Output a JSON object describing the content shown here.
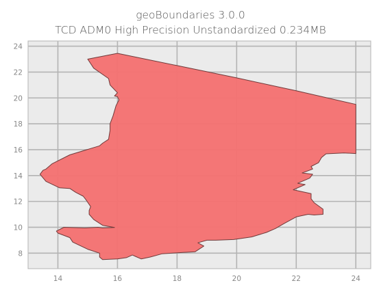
{
  "title_line1": "geoBoundaries 3.0.0",
  "title_line2": "TCD ADM0 High Precision Unstandardized 0.234MB",
  "colors": {
    "background": "#ebebeb",
    "grid": "#b3b3b3",
    "shape_fill": "#f47272",
    "shape_stroke": "#6f3a3a",
    "frame": "#bdbdbd",
    "tick_text": "#888888"
  },
  "chart_data": {
    "type": "map",
    "title": "geoBoundaries 3.0.0\nTCD ADM0 High Precision Unstandardized 0.234MB",
    "xlabel": "",
    "ylabel": "",
    "xlim": [
      13.0,
      24.5
    ],
    "ylim": [
      6.8,
      24.4
    ],
    "x_ticks": [
      14,
      16,
      18,
      20,
      22,
      24
    ],
    "y_ticks": [
      8,
      10,
      12,
      14,
      16,
      18,
      20,
      22,
      24
    ],
    "grid": true,
    "shape_lonlat": [
      [
        15.0,
        23.0
      ],
      [
        16.0,
        23.45
      ],
      [
        18.0,
        22.5
      ],
      [
        20.0,
        21.55
      ],
      [
        22.0,
        20.55
      ],
      [
        24.0,
        19.5
      ],
      [
        24.0,
        15.7
      ],
      [
        23.6,
        15.75
      ],
      [
        23.0,
        15.68
      ],
      [
        22.85,
        15.4
      ],
      [
        22.75,
        15.0
      ],
      [
        22.5,
        14.7
      ],
      [
        22.55,
        14.5
      ],
      [
        22.2,
        14.2
      ],
      [
        22.55,
        14.1
      ],
      [
        22.45,
        13.8
      ],
      [
        22.25,
        13.6
      ],
      [
        22.05,
        13.4
      ],
      [
        22.3,
        13.3
      ],
      [
        21.9,
        12.9
      ],
      [
        22.1,
        12.8
      ],
      [
        22.5,
        12.6
      ],
      [
        22.5,
        12.2
      ],
      [
        22.6,
        11.9
      ],
      [
        22.9,
        11.4
      ],
      [
        22.9,
        11.0
      ],
      [
        22.6,
        10.95
      ],
      [
        22.4,
        11.0
      ],
      [
        22.0,
        10.8
      ],
      [
        21.6,
        10.3
      ],
      [
        21.3,
        9.9
      ],
      [
        21.0,
        9.6
      ],
      [
        20.5,
        9.25
      ],
      [
        19.9,
        9.05
      ],
      [
        19.3,
        9.0
      ],
      [
        19.0,
        9.0
      ],
      [
        18.7,
        8.8
      ],
      [
        18.9,
        8.55
      ],
      [
        18.6,
        8.1
      ],
      [
        18.2,
        8.05
      ],
      [
        17.5,
        7.95
      ],
      [
        17.1,
        7.7
      ],
      [
        16.8,
        7.55
      ],
      [
        16.6,
        7.75
      ],
      [
        16.5,
        7.85
      ],
      [
        16.3,
        7.65
      ],
      [
        16.0,
        7.55
      ],
      [
        15.5,
        7.5
      ],
      [
        15.4,
        7.7
      ],
      [
        15.4,
        8.0
      ],
      [
        15.0,
        8.3
      ],
      [
        14.5,
        8.85
      ],
      [
        14.4,
        9.2
      ],
      [
        14.0,
        9.55
      ],
      [
        13.95,
        9.7
      ],
      [
        14.2,
        10.0
      ],
      [
        14.9,
        9.95
      ],
      [
        15.35,
        10.0
      ],
      [
        15.5,
        9.95
      ],
      [
        15.9,
        9.98
      ],
      [
        15.5,
        10.15
      ],
      [
        15.2,
        10.6
      ],
      [
        15.05,
        11.0
      ],
      [
        15.05,
        11.3
      ],
      [
        15.1,
        11.6
      ],
      [
        14.95,
        12.1
      ],
      [
        14.85,
        12.4
      ],
      [
        14.6,
        12.7
      ],
      [
        14.4,
        13.0
      ],
      [
        14.05,
        13.05
      ],
      [
        13.6,
        13.55
      ],
      [
        13.4,
        14.1
      ],
      [
        13.5,
        14.4
      ],
      [
        13.6,
        14.5
      ],
      [
        13.8,
        14.9
      ],
      [
        14.4,
        15.6
      ],
      [
        15.4,
        16.3
      ],
      [
        15.5,
        16.5
      ],
      [
        15.7,
        16.8
      ],
      [
        15.75,
        17.5
      ],
      [
        15.75,
        18.0
      ],
      [
        15.85,
        18.6
      ],
      [
        15.95,
        19.4
      ],
      [
        16.05,
        19.85
      ],
      [
        16.0,
        20.1
      ],
      [
        15.9,
        20.15
      ],
      [
        16.0,
        20.4
      ],
      [
        15.75,
        21.0
      ],
      [
        15.7,
        21.5
      ],
      [
        15.2,
        22.3
      ],
      [
        15.0,
        23.0
      ]
    ]
  }
}
